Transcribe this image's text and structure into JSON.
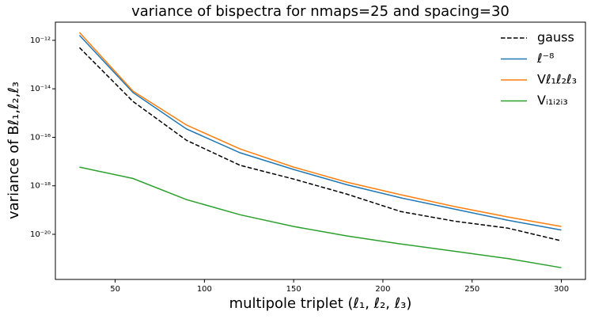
{
  "chart_data": {
    "type": "line",
    "title": "variance of bispectra for nmaps=25 and spacing=30",
    "xlabel": "multipole triplet (ℓ₁, ℓ₂, ℓ₃)",
    "ylabel": "variance of Bℓ₁,ℓ₂,ℓ₃",
    "x": [
      30,
      60,
      90,
      120,
      150,
      180,
      210,
      240,
      270,
      300
    ],
    "series": [
      {
        "name": "gauss",
        "color": "#000000",
        "dash": "dashed",
        "values": [
          5e-13,
          3e-15,
          7.5e-17,
          7e-18,
          1.9e-18,
          4.5e-19,
          8.7e-20,
          3.5e-20,
          1.8e-20,
          5.4e-21
        ]
      },
      {
        "name": "ℓ⁻⁸",
        "color": "#1f77b4",
        "values": [
          1.6e-12,
          7e-15,
          2.2e-16,
          2.3e-17,
          4.7e-18,
          1.1e-18,
          3.2e-19,
          1.1e-19,
          3.8e-20,
          1.5e-20
        ]
      },
      {
        "name": "Vℓ₁ℓ₂ℓ₃",
        "color": "#ff7f0e",
        "values": [
          2.1e-12,
          8e-15,
          3.2e-16,
          3.3e-17,
          5.9e-18,
          1.4e-18,
          4.3e-19,
          1.4e-19,
          5.2e-20,
          2.1e-20
        ]
      },
      {
        "name": "Vᵢ₁ᵢ₂ᵢ₃",
        "color": "#2ca02c",
        "values": [
          5.9e-18,
          2e-18,
          2.7e-19,
          6.4e-20,
          2.1e-20,
          8.5e-21,
          4e-21,
          2e-21,
          1e-21,
          4.2e-22
        ]
      }
    ],
    "xlim": [
      16.5,
      313.5
    ],
    "xticks": [
      50,
      100,
      150,
      200,
      250,
      300
    ],
    "ylim": [
      1.38e-22,
      5.6e-12
    ],
    "ylog": true,
    "yticks": [
      {
        "value": 1e-20,
        "label": "10⁻²⁰"
      },
      {
        "value": 1e-18,
        "label": "10⁻¹⁸"
      },
      {
        "value": 1e-16,
        "label": "10⁻¹⁶"
      },
      {
        "value": 1e-14,
        "label": "10⁻¹⁴"
      },
      {
        "value": 1e-12,
        "label": "10⁻¹²"
      }
    ],
    "legend": "upper right"
  }
}
